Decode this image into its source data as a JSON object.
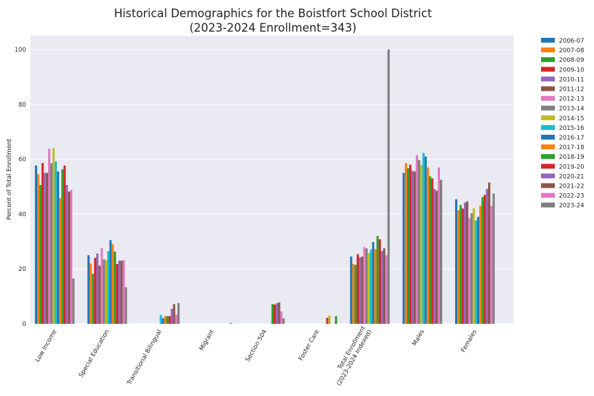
{
  "chart_data": {
    "type": "bar",
    "title": "Historical Demographics for the Boistfort School District",
    "subtitle": "(2023-2024 Enrollment=343)",
    "xlabel": "",
    "ylabel": "Percent of Total Enrollment",
    "ylim": [
      0,
      105
    ],
    "yticks": [
      0,
      20,
      40,
      60,
      80,
      100
    ],
    "grid": true,
    "legend_position": "outside-right",
    "categories": [
      [
        "Low Income"
      ],
      [
        "Special Education"
      ],
      [
        "Transitional Bilingual"
      ],
      [
        "Migrant"
      ],
      [
        "Section 504"
      ],
      [
        "Foster Care"
      ],
      [
        "Total Enrollment",
        "(2023-2024 Indexed)"
      ],
      [
        "Males"
      ],
      [
        "Females"
      ]
    ],
    "series": [
      {
        "name": "2006-07",
        "color": "#1f77b4",
        "values": [
          57.7,
          25.0,
          0,
          0,
          0,
          0,
          24.5,
          55.0,
          45.4
        ]
      },
      {
        "name": "2007-08",
        "color": "#ff7f0e",
        "values": [
          54.6,
          22.0,
          0,
          0,
          0,
          0,
          21.8,
          58.6,
          41.4
        ]
      },
      {
        "name": "2008-09",
        "color": "#2ca02c",
        "values": [
          50.6,
          18.2,
          0,
          0,
          0,
          0,
          21.5,
          56.7,
          43.3
        ]
      },
      {
        "name": "2009-10",
        "color": "#d62728",
        "values": [
          58.6,
          24.0,
          0,
          0,
          0,
          0,
          25.4,
          58.0,
          42.0
        ]
      },
      {
        "name": "2010-11",
        "color": "#9467bd",
        "values": [
          55.0,
          25.6,
          0,
          0,
          0,
          0,
          24.2,
          55.8,
          44.2
        ]
      },
      {
        "name": "2011-12",
        "color": "#8c564b",
        "values": [
          55.0,
          21.2,
          0,
          0,
          0,
          0,
          24.5,
          55.5,
          44.6
        ]
      },
      {
        "name": "2012-13",
        "color": "#e377c2",
        "values": [
          63.8,
          27.6,
          0,
          0,
          0,
          0,
          28.0,
          61.5,
          38.5
        ]
      },
      {
        "name": "2013-14",
        "color": "#7f7f7f",
        "values": [
          58.5,
          23.5,
          0,
          0,
          0,
          0,
          27.5,
          59.7,
          40.3
        ]
      },
      {
        "name": "2014-15",
        "color": "#bcbd22",
        "values": [
          64.0,
          23.2,
          0,
          0,
          0,
          0,
          25.8,
          57.9,
          42.1
        ]
      },
      {
        "name": "2015-16",
        "color": "#17becf",
        "values": [
          59.2,
          26.5,
          3.2,
          0,
          0,
          0,
          27.0,
          62.3,
          37.7
        ]
      },
      {
        "name": "2016-17",
        "color": "#1f77b4",
        "values": [
          55.5,
          30.5,
          2.0,
          0,
          0,
          0,
          29.8,
          61.0,
          39.0
        ]
      },
      {
        "name": "2017-18",
        "color": "#ff7f0e",
        "values": [
          45.8,
          29.0,
          2.8,
          0,
          0,
          0,
          27.2,
          57.0,
          43.0
        ]
      },
      {
        "name": "2018-19",
        "color": "#2ca02c",
        "values": [
          56.3,
          26.3,
          2.8,
          0,
          7.2,
          0,
          32.0,
          53.8,
          46.2
        ]
      },
      {
        "name": "2019-20",
        "color": "#d62728",
        "values": [
          57.7,
          21.8,
          2.8,
          0,
          7.0,
          2.2,
          30.8,
          53.0,
          47.0
        ]
      },
      {
        "name": "2020-21",
        "color": "#9467bd",
        "values": [
          50.6,
          23.0,
          5.5,
          0,
          7.5,
          0,
          26.5,
          49.2,
          49.2
        ]
      },
      {
        "name": "2021-22",
        "color": "#8c564b",
        "values": [
          48.2,
          23.0,
          7.2,
          0,
          7.8,
          0,
          27.5,
          48.5,
          51.5
        ]
      },
      {
        "name": "2022-23",
        "color": "#e377c2",
        "values": [
          48.8,
          23.2,
          3.3,
          0,
          4.5,
          0,
          25.0,
          57.0,
          43.0
        ]
      },
      {
        "name": "2023-24",
        "color": "#7f7f7f",
        "values": [
          16.5,
          13.3,
          7.6,
          0.3,
          2.0,
          1.0,
          100.0,
          52.5,
          47.5
        ]
      },
      {
        "name": "",
        "color": "#bcbd22",
        "values": [
          0,
          0,
          0,
          0,
          0,
          3.0,
          0,
          0,
          0
        ]
      },
      {
        "name": "",
        "color": "#2ca02c",
        "values": [
          0,
          0,
          0,
          0,
          0,
          2.8,
          0,
          0,
          0
        ]
      }
    ]
  },
  "colors": {
    "plot_bg": "#eaeaf2",
    "grid": "#ffffff",
    "text": "#262626"
  }
}
